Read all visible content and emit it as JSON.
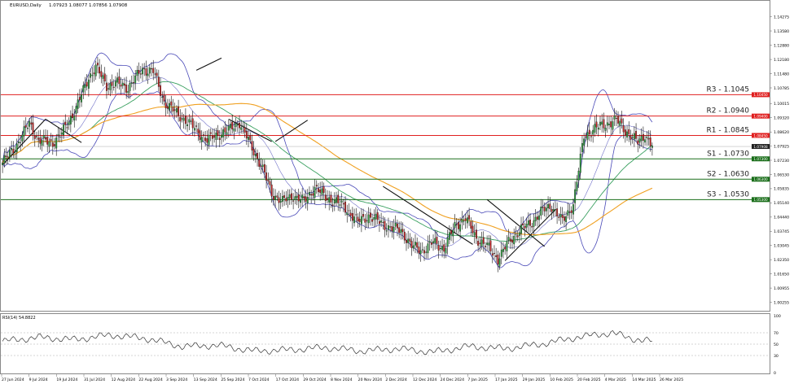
{
  "chart_data": {
    "type": "candlestick",
    "symbol_label": "EURUSD,Daily",
    "ohlc_label": "1.07923 1.08077 1.07856 1.07908",
    "last_price": "1.07908",
    "y_range": [
      1.0,
      1.147
    ],
    "y_ticks": [
      "1.14275",
      "1.13580",
      "1.12880",
      "1.12180",
      "1.11480",
      "1.10785",
      "1.10015",
      "1.09320",
      "1.08620",
      "1.07925",
      "1.07230",
      "1.06530",
      "1.05835",
      "1.05140",
      "1.04440",
      "1.03745",
      "1.03045",
      "1.02350",
      "1.01650",
      "1.00955",
      "1.00255",
      "0.99560"
    ],
    "x_labels": [
      "27 Jun 2024",
      "9 Jul 2024",
      "19 Jul 2024",
      "31 Jul 2024",
      "12 Aug 2024",
      "22 Aug 2024",
      "3 Sep 2024",
      "13 Sep 2024",
      "25 Sep 2024",
      "7 Oct 2024",
      "17 Oct 2024",
      "29 Oct 2024",
      "8 Nov 2024",
      "20 Nov 2024",
      "2 Dec 2024",
      "12 Dec 2024",
      "24 Dec 2024",
      "7 Jan 2025",
      "17 Jan 2025",
      "29 Jan 2025",
      "10 Feb 2025",
      "20 Feb 2025",
      "4 Mar 2025",
      "14 Mar 2025",
      "26 Mar 2025"
    ],
    "levels": [
      {
        "name": "R3 - 1.1045",
        "price": 1.1045,
        "tag": "1.10450",
        "color": "#e02020"
      },
      {
        "name": "R2 - 1.0940",
        "price": 1.094,
        "tag": "1.09400",
        "color": "#e02020"
      },
      {
        "name": "R1 - 1.0845",
        "price": 1.0845,
        "tag": "1.08450",
        "color": "#e02020"
      },
      {
        "name": "S1 - 1.0730",
        "price": 1.073,
        "tag": "1.07300",
        "color": "#1a6e1a"
      },
      {
        "name": "S2 - 1.0630",
        "price": 1.063,
        "tag": "1.06300",
        "color": "#1a6e1a"
      },
      {
        "name": "S3 - 1.0530",
        "price": 1.053,
        "tag": "1.05300",
        "color": "#1a6e1a"
      }
    ],
    "close_anchors": [
      [
        0,
        1.071
      ],
      [
        8,
        1.08
      ],
      [
        15,
        1.0905
      ],
      [
        20,
        1.082
      ],
      [
        28,
        1.081
      ],
      [
        33,
        1.0855
      ],
      [
        41,
        1.098
      ],
      [
        48,
        1.113
      ],
      [
        52,
        1.118
      ],
      [
        58,
        1.109
      ],
      [
        64,
        1.11
      ],
      [
        70,
        1.108
      ],
      [
        78,
        1.117
      ],
      [
        84,
        1.116
      ],
      [
        90,
        1.101
      ],
      [
        96,
        1.096
      ],
      [
        102,
        1.092
      ],
      [
        108,
        1.087
      ],
      [
        114,
        1.082
      ],
      [
        120,
        1.085
      ],
      [
        126,
        1.087
      ],
      [
        132,
        1.091
      ],
      [
        138,
        1.08
      ],
      [
        144,
        1.07
      ],
      [
        150,
        1.056
      ],
      [
        156,
        1.052
      ],
      [
        162,
        1.055
      ],
      [
        168,
        1.052
      ],
      [
        174,
        1.059
      ],
      [
        180,
        1.054
      ],
      [
        186,
        1.052
      ],
      [
        192,
        1.048
      ],
      [
        198,
        1.042
      ],
      [
        204,
        1.045
      ],
      [
        210,
        1.042
      ],
      [
        216,
        1.039
      ],
      [
        222,
        1.038
      ],
      [
        228,
        1.03
      ],
      [
        234,
        1.028
      ],
      [
        240,
        1.032
      ],
      [
        246,
        1.029
      ],
      [
        252,
        1.04
      ],
      [
        258,
        1.044
      ],
      [
        264,
        1.034
      ],
      [
        270,
        1.03
      ],
      [
        276,
        1.024
      ],
      [
        282,
        1.032
      ],
      [
        288,
        1.038
      ],
      [
        294,
        1.041
      ],
      [
        300,
        1.047
      ],
      [
        306,
        1.05
      ],
      [
        312,
        1.042
      ],
      [
        318,
        1.051
      ],
      [
        324,
        1.084
      ],
      [
        330,
        1.088
      ],
      [
        336,
        1.09
      ],
      [
        342,
        1.092
      ],
      [
        348,
        1.086
      ],
      [
        354,
        1.081
      ],
      [
        358,
        1.085
      ],
      [
        362,
        1.079
      ]
    ],
    "rsi": {
      "label": "RSI(14) 54.8822",
      "levels": [
        70,
        50,
        30
      ],
      "tick_labels": [
        "100",
        "70",
        "50",
        "30",
        "0"
      ],
      "values_anchor": [
        [
          0,
          55
        ],
        [
          20,
          62
        ],
        [
          40,
          58
        ],
        [
          60,
          66
        ],
        [
          80,
          60
        ],
        [
          100,
          46
        ],
        [
          120,
          48
        ],
        [
          140,
          38
        ],
        [
          160,
          40
        ],
        [
          180,
          44
        ],
        [
          200,
          38
        ],
        [
          220,
          42
        ],
        [
          240,
          36
        ],
        [
          260,
          46
        ],
        [
          280,
          42
        ],
        [
          300,
          50
        ],
        [
          320,
          62
        ],
        [
          340,
          70
        ],
        [
          350,
          60
        ],
        [
          362,
          55
        ]
      ]
    },
    "ylabel": "",
    "xlabel": ""
  }
}
